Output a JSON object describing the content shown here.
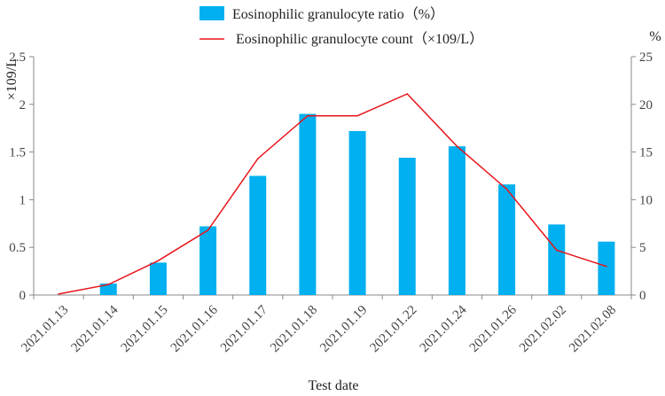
{
  "chart_data": {
    "type": "bar",
    "combo": "bar+line, dual y-axis",
    "xlabel": "Test date",
    "ylabel_left": "×109/L",
    "ylabel_right": "%",
    "ylim_left": [
      0,
      2.5
    ],
    "ylim_right": [
      0,
      25
    ],
    "yticks_left": [
      "0",
      "0.5",
      "1",
      "1.5",
      "2",
      "2.5"
    ],
    "yticks_right": [
      "0",
      "5",
      "10",
      "15",
      "20",
      "25"
    ],
    "categories": [
      "2021.01.13",
      "2021.01.14",
      "2021.01.15",
      "2021.01.16",
      "2021.01.17",
      "2021.01.18",
      "2021.01.19",
      "2021.01.22",
      "2021.01.24",
      "2021.01.26",
      "2021.02.02",
      "2021.02.08"
    ],
    "series": [
      {
        "name": "Eosinophilic granulocyte  ratio（%）",
        "type": "bar",
        "axis": "right",
        "color": "#00b0f0",
        "values": [
          0,
          1.2,
          3.4,
          7.2,
          12.5,
          19.0,
          17.2,
          14.4,
          15.6,
          11.6,
          7.4,
          5.6
        ]
      },
      {
        "name": "Eosinophilic granulocyte count（×109/L）",
        "type": "line",
        "axis": "left",
        "color": "#e8141b",
        "values": [
          0.01,
          0.11,
          0.36,
          0.68,
          1.43,
          1.88,
          1.88,
          2.11,
          1.56,
          1.11,
          0.47,
          0.3
        ]
      }
    ],
    "legend_position": "top-center"
  }
}
